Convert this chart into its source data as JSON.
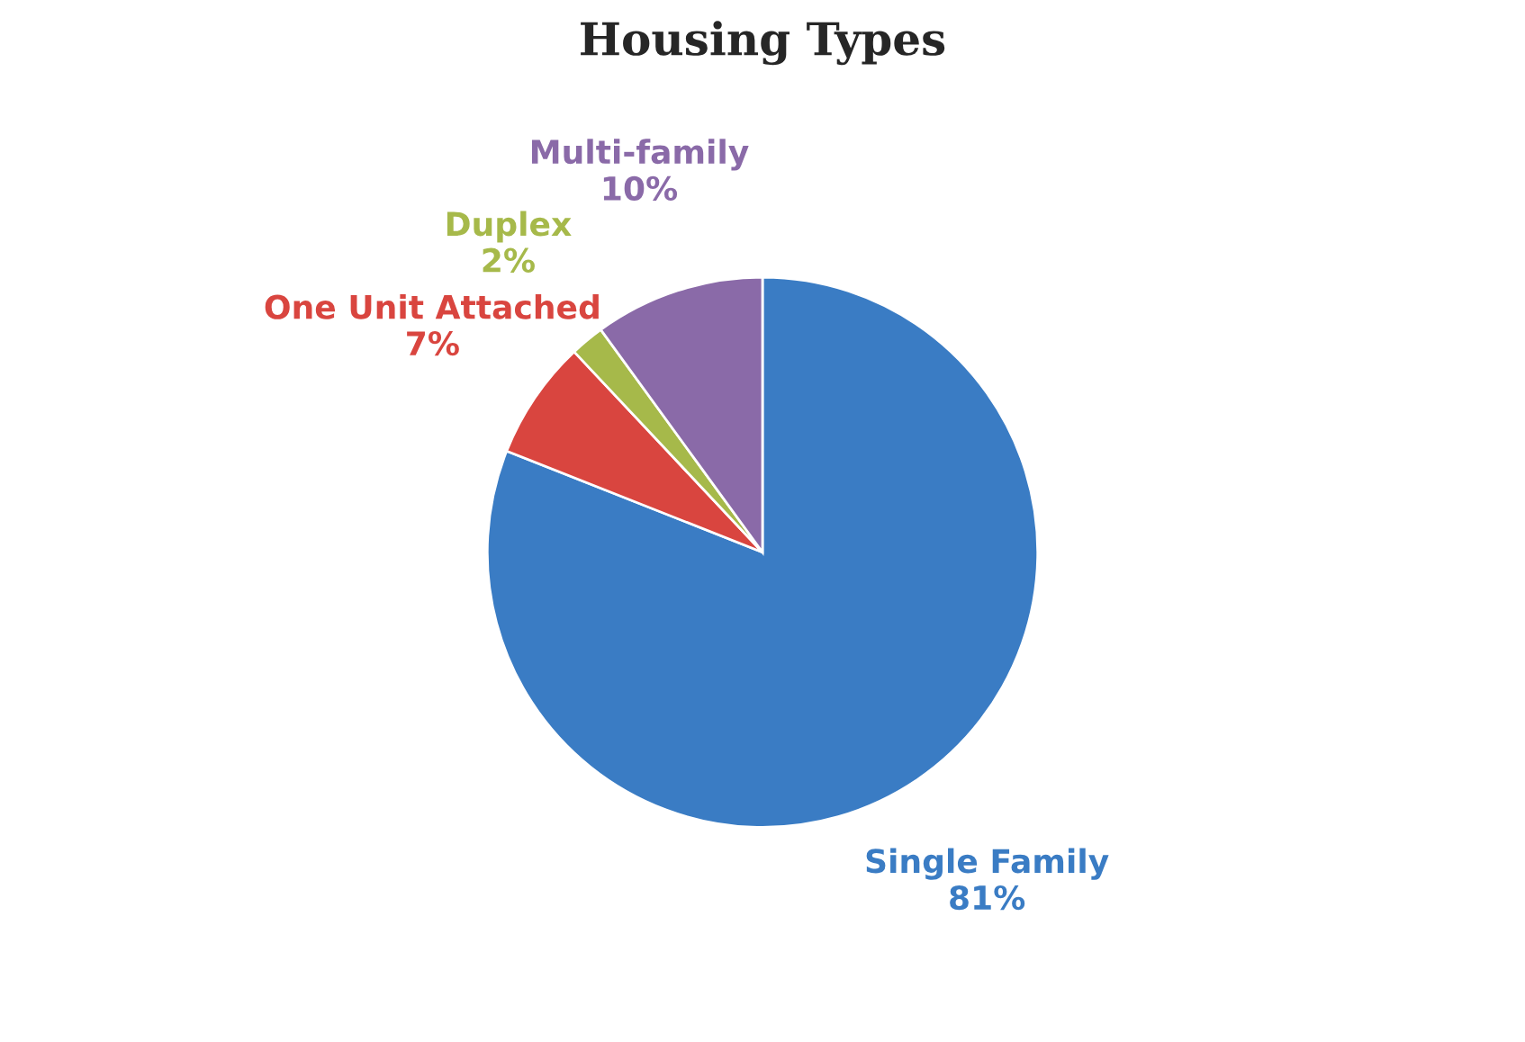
{
  "chart_data": {
    "type": "pie",
    "title": "Housing Types",
    "categories": [
      "Single Family",
      "One Unit Attached",
      "Duplex",
      "Multi-family"
    ],
    "values": [
      81,
      7,
      2,
      10
    ],
    "colors": [
      "#3a7cc4",
      "#d9453f",
      "#a6b94a",
      "#8a6aa8"
    ],
    "value_labels": [
      "81%",
      "7%",
      "2%",
      "10%"
    ],
    "legend": false
  }
}
